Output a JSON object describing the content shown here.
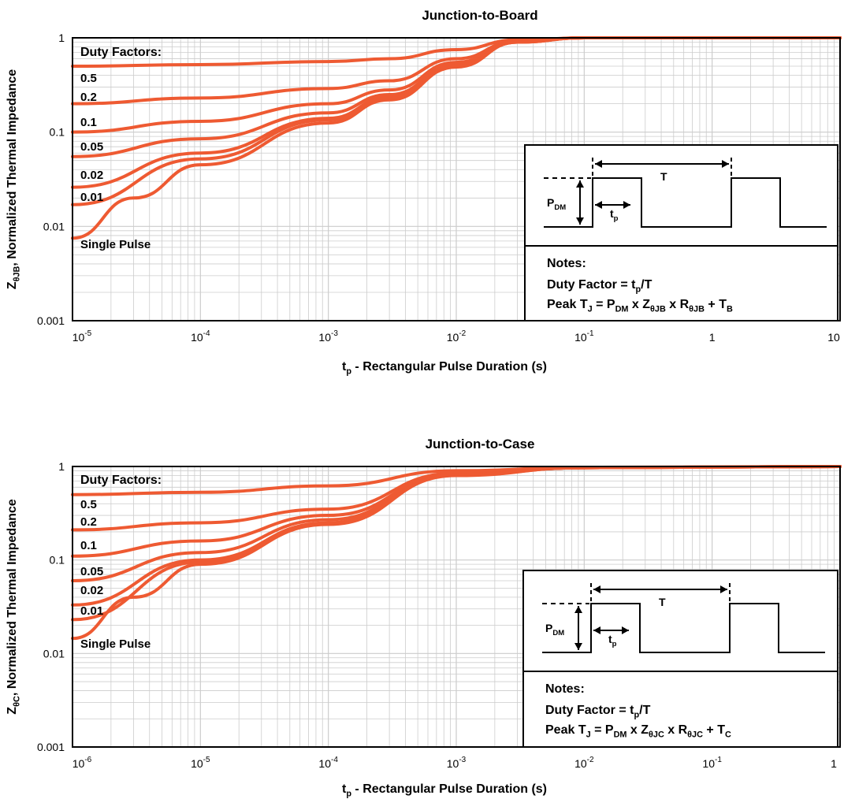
{
  "colors": {
    "curve": "#ee5a32",
    "grid": "#cccccc",
    "frame": "#000000"
  },
  "chart_data": [
    {
      "type": "line",
      "title": "Junction-to-Board",
      "xlabel": "t_p - Rectangular Pulse Duration (s)",
      "ylabel": "Z_θJB, Normalized Thermal Impedance",
      "xscale": "log",
      "yscale": "log",
      "xlim": [
        1e-05,
        10
      ],
      "ylim": [
        0.001,
        1
      ],
      "xticks": [
        {
          "v": 1e-05,
          "base": "10",
          "exp": "-5"
        },
        {
          "v": 0.0001,
          "base": "10",
          "exp": "-4"
        },
        {
          "v": 0.001,
          "base": "10",
          "exp": "-3"
        },
        {
          "v": 0.01,
          "base": "10",
          "exp": "-2"
        },
        {
          "v": 0.1,
          "base": "10",
          "exp": "-1"
        },
        {
          "v": 1,
          "base": "1",
          "exp": ""
        },
        {
          "v": 10,
          "base": "10",
          "exp": ""
        }
      ],
      "yticks": [
        {
          "v": 1,
          "label": "1"
        },
        {
          "v": 0.1,
          "label": "0.1"
        },
        {
          "v": 0.01,
          "label": "0.01"
        },
        {
          "v": 0.001,
          "label": "0.001"
        }
      ],
      "grid": true,
      "legend_title": "Duty Factors:",
      "series": [
        {
          "name": "0.5",
          "x": [
            1e-05,
            0.0001,
            0.001,
            0.003,
            0.01,
            0.03,
            0.1,
            10
          ],
          "y": [
            0.5,
            0.52,
            0.56,
            0.6,
            0.75,
            0.95,
            1,
            1
          ]
        },
        {
          "name": "0.2",
          "x": [
            1e-05,
            0.0001,
            0.001,
            0.003,
            0.01,
            0.03,
            0.1,
            10
          ],
          "y": [
            0.2,
            0.23,
            0.29,
            0.35,
            0.6,
            0.93,
            1,
            1
          ]
        },
        {
          "name": "0.1",
          "x": [
            1e-05,
            0.0001,
            0.001,
            0.003,
            0.01,
            0.03,
            0.1,
            10
          ],
          "y": [
            0.1,
            0.13,
            0.2,
            0.28,
            0.55,
            0.92,
            1,
            1
          ]
        },
        {
          "name": "0.05",
          "x": [
            1e-05,
            0.0001,
            0.001,
            0.003,
            0.01,
            0.03,
            0.1,
            10
          ],
          "y": [
            0.055,
            0.085,
            0.16,
            0.25,
            0.52,
            0.91,
            1,
            1
          ]
        },
        {
          "name": "0.02",
          "x": [
            1e-05,
            0.0001,
            0.001,
            0.003,
            0.01,
            0.03,
            0.1,
            10
          ],
          "y": [
            0.026,
            0.06,
            0.14,
            0.235,
            0.51,
            0.9,
            1,
            1
          ]
        },
        {
          "name": "0.01",
          "x": [
            1e-05,
            0.0001,
            0.001,
            0.003,
            0.01,
            0.03,
            0.1,
            10
          ],
          "y": [
            0.017,
            0.052,
            0.135,
            0.23,
            0.5,
            0.9,
            1,
            1
          ]
        },
        {
          "name": "Single Pulse",
          "x": [
            1e-05,
            3e-05,
            0.0001,
            0.001,
            0.003,
            0.01,
            0.03,
            0.1,
            10
          ],
          "y": [
            0.0075,
            0.02,
            0.045,
            0.125,
            0.22,
            0.49,
            0.9,
            1,
            1
          ]
        }
      ],
      "notes": {
        "heading": "Notes:",
        "line1": "Duty Factor = t_p/T",
        "line2": "Peak T_J = P_DM x Z_θJB x R_θJB + T_B"
      },
      "diagram": {
        "pdm": "P_DM",
        "period": "T",
        "pulse": "t_p"
      }
    },
    {
      "type": "line",
      "title": "Junction-to-Case",
      "xlabel": "t_p - Rectangular Pulse Duration (s)",
      "ylabel": "Z_θC, Normalized Thermal Impedance",
      "xscale": "log",
      "yscale": "log",
      "xlim": [
        1e-06,
        1
      ],
      "ylim": [
        0.001,
        1
      ],
      "xticks": [
        {
          "v": 1e-06,
          "base": "10",
          "exp": "-6"
        },
        {
          "v": 1e-05,
          "base": "10",
          "exp": "-5"
        },
        {
          "v": 0.0001,
          "base": "10",
          "exp": "-4"
        },
        {
          "v": 0.001,
          "base": "10",
          "exp": "-3"
        },
        {
          "v": 0.01,
          "base": "10",
          "exp": "-2"
        },
        {
          "v": 0.1,
          "base": "10",
          "exp": "-1"
        },
        {
          "v": 1,
          "base": "1",
          "exp": ""
        }
      ],
      "yticks": [
        {
          "v": 1,
          "label": "1"
        },
        {
          "v": 0.1,
          "label": "0.1"
        },
        {
          "v": 0.01,
          "label": "0.01"
        },
        {
          "v": 0.001,
          "label": "0.001"
        }
      ],
      "grid": true,
      "legend_title": "Duty Factors:",
      "series": [
        {
          "name": "0.5",
          "x": [
            1e-06,
            1e-05,
            0.0001,
            0.001,
            0.01,
            1
          ],
          "y": [
            0.5,
            0.53,
            0.62,
            0.9,
            0.98,
            1
          ]
        },
        {
          "name": "0.2",
          "x": [
            1e-06,
            1e-05,
            0.0001,
            0.001,
            0.01,
            1
          ],
          "y": [
            0.21,
            0.25,
            0.35,
            0.85,
            0.97,
            1
          ]
        },
        {
          "name": "0.1",
          "x": [
            1e-06,
            1e-05,
            0.0001,
            0.001,
            0.01,
            1
          ],
          "y": [
            0.11,
            0.16,
            0.3,
            0.83,
            0.97,
            1
          ]
        },
        {
          "name": "0.05",
          "x": [
            1e-06,
            1e-05,
            0.0001,
            0.001,
            0.01,
            1
          ],
          "y": [
            0.06,
            0.12,
            0.27,
            0.82,
            0.97,
            1
          ]
        },
        {
          "name": "0.02",
          "x": [
            1e-06,
            1e-05,
            0.0001,
            0.001,
            0.01,
            1
          ],
          "y": [
            0.033,
            0.1,
            0.25,
            0.81,
            0.97,
            1
          ]
        },
        {
          "name": "0.01",
          "x": [
            1e-06,
            1e-05,
            0.0001,
            0.001,
            0.01,
            1
          ],
          "y": [
            0.023,
            0.095,
            0.245,
            0.81,
            0.97,
            1
          ]
        },
        {
          "name": "Single Pulse",
          "x": [
            1e-06,
            3e-06,
            1e-05,
            0.0001,
            0.001,
            0.01,
            1
          ],
          "y": [
            0.0145,
            0.04,
            0.09,
            0.24,
            0.8,
            0.97,
            1
          ]
        }
      ],
      "notes": {
        "heading": "Notes:",
        "line1": "Duty Factor = t_p/T",
        "line2": "Peak T_J = P_DM x Z_θJC x R_θJC + T_C"
      },
      "diagram": {
        "pdm": "P_DM",
        "period": "T",
        "pulse": "t_p"
      }
    }
  ]
}
